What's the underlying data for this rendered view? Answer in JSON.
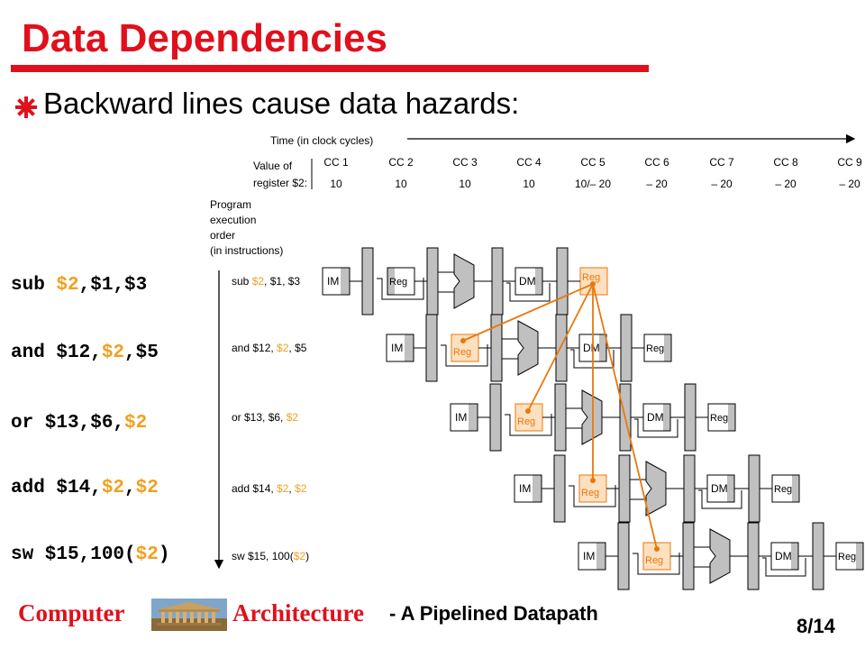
{
  "slide": {
    "title": "Data Dependencies",
    "bullet": "Backward lines cause data hazards:"
  },
  "instructions": [
    {
      "parts": [
        {
          "t": "sub ",
          "hl": false
        },
        {
          "t": "$2",
          "hl": true
        },
        {
          "t": ",$1,$3",
          "hl": false
        }
      ]
    },
    {
      "parts": [
        {
          "t": "and $12,",
          "hl": false
        },
        {
          "t": "$2",
          "hl": true
        },
        {
          "t": ",$5",
          "hl": false
        }
      ]
    },
    {
      "parts": [
        {
          "t": "or $13,$6,",
          "hl": false
        },
        {
          "t": "$2",
          "hl": true
        }
      ]
    },
    {
      "parts": [
        {
          "t": "add $14,",
          "hl": false
        },
        {
          "t": "$2",
          "hl": true
        },
        {
          "t": ",",
          "hl": false
        },
        {
          "t": "$2",
          "hl": true
        }
      ]
    },
    {
      "parts": [
        {
          "t": "sw $15,100(",
          "hl": false
        },
        {
          "t": "$2",
          "hl": true
        },
        {
          "t": ")",
          "hl": false
        }
      ]
    }
  ],
  "diagram": {
    "time_label": "Time (in clock cycles)",
    "value_label_1": "Value of",
    "value_label_2": "register $2:",
    "program_label": [
      "Program",
      "execution",
      "order",
      "(in instructions)"
    ],
    "clock_cycles": [
      "CC 1",
      "CC 2",
      "CC 3",
      "CC 4",
      "CC 5",
      "CC 6",
      "CC 7",
      "CC 8",
      "CC 9"
    ],
    "register_values": [
      "10",
      "10",
      "10",
      "10",
      "10/– 20",
      "– 20",
      "– 20",
      "– 20",
      "– 20"
    ],
    "row_labels": [
      [
        {
          "t": "sub ",
          "hl": false
        },
        {
          "t": "$2",
          "hl": true
        },
        {
          "t": ", $1, $3",
          "hl": false
        }
      ],
      [
        {
          "t": "and $12, ",
          "hl": false
        },
        {
          "t": "$2",
          "hl": true
        },
        {
          "t": ", $5",
          "hl": false
        }
      ],
      [
        {
          "t": "or $13, $6, ",
          "hl": false
        },
        {
          "t": "$2",
          "hl": true
        }
      ],
      [
        {
          "t": "add $14, ",
          "hl": false
        },
        {
          "t": "$2",
          "hl": true
        },
        {
          "t": ", ",
          "hl": false
        },
        {
          "t": "$2",
          "hl": true
        }
      ],
      [
        {
          "t": "sw $15, 100(",
          "hl": false
        },
        {
          "t": "$2",
          "hl": true
        },
        {
          "t": ")",
          "hl": false
        }
      ]
    ],
    "stage_labels": {
      "im": "IM",
      "reg": "Reg",
      "dm": "DM"
    },
    "colors": {
      "hazard": "#e8780c",
      "highlight_fill": "#fde0c0",
      "accent": "#e0101c",
      "reg_orange": "#f0a020"
    }
  },
  "footer": {
    "left": "Computer",
    "mid": "Architecture",
    "sub": "- A Pipelined Datapath",
    "page": "8/14"
  }
}
